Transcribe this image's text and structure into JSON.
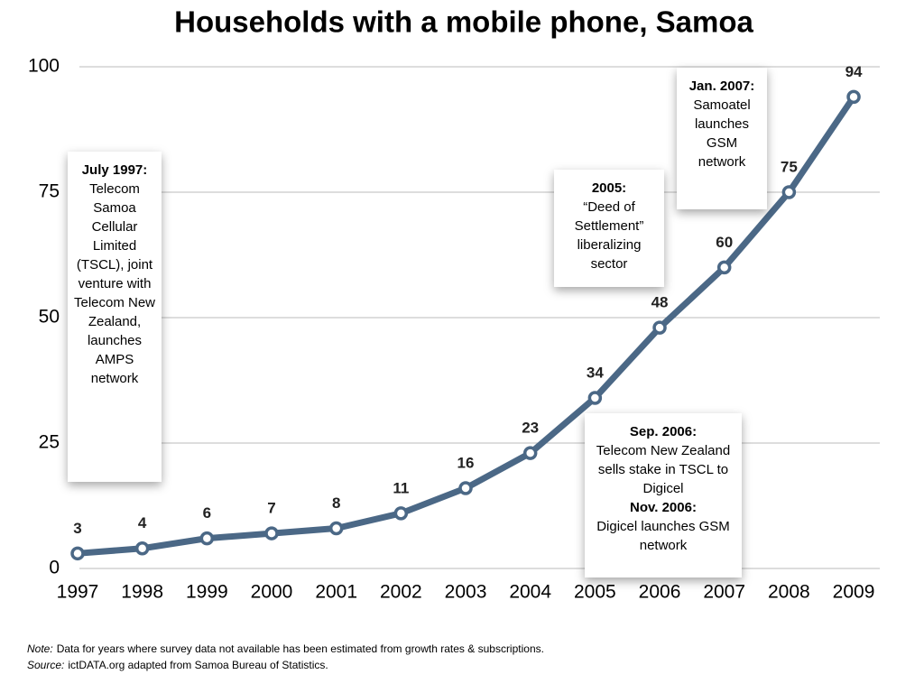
{
  "chart_data": {
    "type": "line",
    "title": "Households with a mobile phone, Samoa",
    "categories": [
      "1997",
      "1998",
      "1999",
      "2000",
      "2001",
      "2002",
      "2003",
      "2004",
      "2005",
      "2006",
      "2007",
      "2008",
      "2009"
    ],
    "values": [
      3,
      4,
      6,
      7,
      8,
      11,
      16,
      23,
      34,
      48,
      60,
      75,
      94
    ],
    "color": "#4b6886",
    "ylim": [
      0,
      100
    ],
    "yticks": [
      0,
      25,
      50,
      75,
      100
    ],
    "grid": true,
    "annotations": [
      {
        "parts": [
          {
            "text": "July 1997:",
            "bold": true
          },
          {
            "text": "Telecom Samoa Cellular Limited (TSCL), joint venture with Telecom New Zealand, launches AMPS network",
            "bold": false
          }
        ]
      },
      {
        "parts": [
          {
            "text": "2005:",
            "bold": true
          },
          {
            "text": "“Deed of Settlement” liberalizing sector",
            "bold": false
          }
        ]
      },
      {
        "parts": [
          {
            "text": "Jan. 2007:",
            "bold": true
          },
          {
            "text": "Samoatel launches GSM network",
            "bold": false
          }
        ]
      },
      {
        "parts": [
          {
            "text": "Sep. 2006:",
            "bold": true
          },
          {
            "text": "Telecom New Zealand sells stake in TSCL to Digicel",
            "bold": false
          },
          {
            "text": "Nov. 2006:",
            "bold": true
          },
          {
            "text": "Digicel launches GSM network",
            "bold": false
          }
        ]
      }
    ],
    "footnotes": [
      {
        "label": "Note:",
        "text": "Data for years where survey data not available has been estimated from growth rates & subscriptions."
      },
      {
        "label": "Source:",
        "text": "ictDATA.org adapted from Samoa Bureau of Statistics."
      }
    ]
  }
}
